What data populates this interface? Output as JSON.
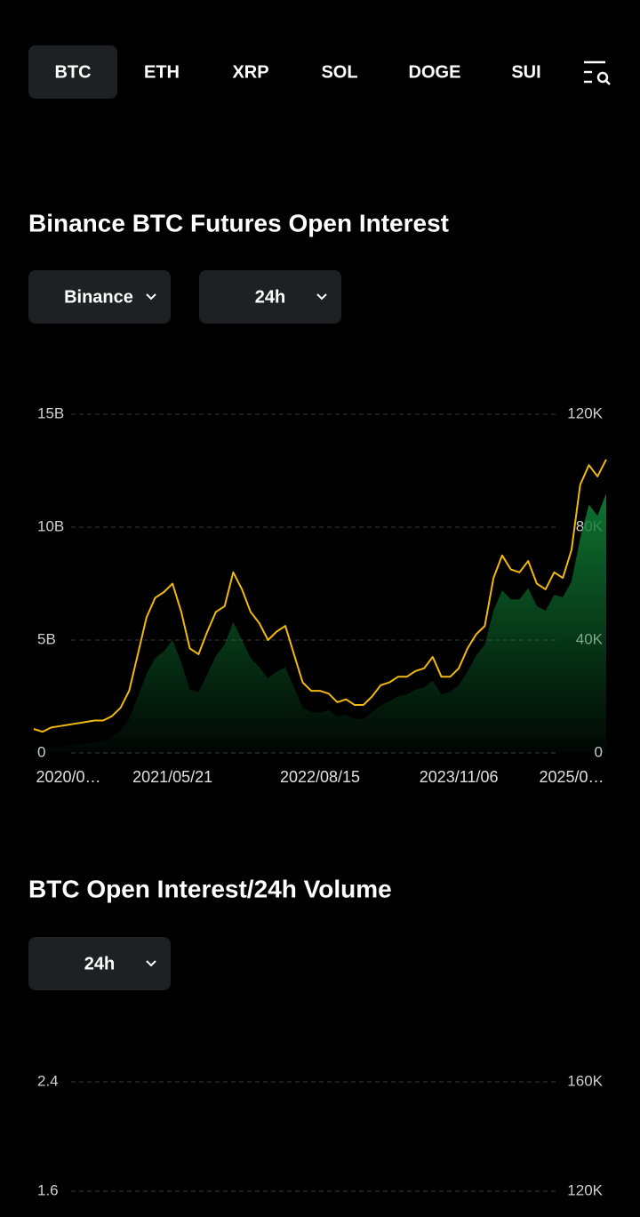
{
  "tabs": [
    "BTC",
    "ETH",
    "XRP",
    "SOL",
    "DOGE",
    "SUI"
  ],
  "active_tab": 0,
  "chart_data": [
    {
      "type": "line",
      "title": "Binance BTC Futures Open Interest",
      "filters": [
        "Binance",
        "24h"
      ],
      "categories": [
        null,
        null,
        null,
        null,
        "2020/0…",
        null,
        null,
        null,
        null,
        null,
        null,
        null,
        null,
        null,
        null,
        null,
        "2021/05/21",
        null,
        null,
        null,
        null,
        null,
        null,
        null,
        null,
        null,
        null,
        null,
        null,
        null,
        null,
        null,
        null,
        "2022/08/15",
        null,
        null,
        null,
        null,
        null,
        null,
        null,
        null,
        null,
        null,
        null,
        null,
        null,
        null,
        null,
        "2023/11/06",
        null,
        null,
        null,
        null,
        null,
        null,
        null,
        null,
        null,
        null,
        null,
        null,
        "2025/0…",
        null,
        null,
        null,
        null
      ],
      "series": [
        {
          "style": "area",
          "color": "#0f7a33",
          "values": [
            200000000.0,
            200000000.0,
            300000000.0,
            300000000.0,
            300000000.0,
            400000000.0,
            400000000.0,
            500000000.0,
            500000000.0,
            700000000.0,
            1000000000.0,
            1500000000.0,
            2500000000.0,
            3500000000.0,
            4200000000.0,
            4500000000.0,
            5000000000.0,
            4000000000.0,
            2800000000.0,
            2700000000.0,
            3500000000.0,
            4300000000.0,
            4800000000.0,
            5800000000.0,
            5000000000.0,
            4200000000.0,
            3800000000.0,
            3300000000.0,
            3600000000.0,
            3800000000.0,
            2900000000.0,
            2000000000.0,
            1800000000.0,
            1800000000.0,
            1900000000.0,
            1600000000.0,
            1700000000.0,
            1500000000.0,
            1500000000.0,
            1800000000.0,
            2100000000.0,
            2300000000.0,
            2500000000.0,
            2600000000.0,
            2800000000.0,
            2900000000.0,
            3200000000.0,
            2600000000.0,
            2700000000.0,
            3000000000.0,
            3600000000.0,
            4300000000.0,
            4800000000.0,
            6300000000.0,
            7200000000.0,
            6800000000.0,
            6800000000.0,
            7300000000.0,
            6500000000.0,
            6300000000.0,
            7000000000.0,
            6900000000.0,
            7600000000.0,
            9500000000.0,
            11000000000.0,
            10500000000.0,
            11500000000.0
          ]
        },
        {
          "style": "line",
          "axis": "y2",
          "color": "#f0b90b",
          "values": [
            8500,
            7500,
            9000,
            9500,
            10000,
            10500,
            11000,
            11500,
            11500,
            13000,
            16000,
            22000,
            35000,
            48000,
            55000,
            57000,
            60000,
            50000,
            37000,
            35000,
            43000,
            50000,
            52000,
            64000,
            58000,
            50000,
            46000,
            40000,
            43000,
            45000,
            35000,
            25000,
            22000,
            22000,
            21000,
            18000,
            19000,
            17000,
            17000,
            20000,
            24000,
            25000,
            27000,
            27000,
            29000,
            30000,
            34000,
            27000,
            27000,
            30000,
            37000,
            42000,
            45000,
            62000,
            70000,
            65000,
            64000,
            68000,
            60000,
            58000,
            64000,
            62000,
            72000,
            95000,
            102000,
            98000,
            104000
          ]
        }
      ],
      "ylim": [
        0,
        15000000000.0
      ],
      "yticks": [
        0,
        {
          "value": 5000000000.0,
          "label": "5B"
        },
        {
          "value": 10000000000.0,
          "label": "10B"
        },
        {
          "value": 15000000000.0,
          "label": "15B"
        }
      ],
      "y2lim": [
        0,
        120000
      ],
      "y2ticks": [
        0,
        {
          "value": 40000,
          "label": "40K"
        },
        {
          "value": 80000,
          "label": "80K"
        },
        {
          "value": 120000,
          "label": "120K"
        }
      ],
      "grid": true
    },
    {
      "type": "line",
      "title": "BTC Open Interest/24h Volume",
      "filters": [
        "24h"
      ],
      "categories": [],
      "series": [],
      "ylim": [
        0,
        2.4
      ],
      "yticks": [
        1.6,
        2.4
      ],
      "y2lim": [
        40000,
        160000
      ],
      "y2ticks": [
        {
          "value": 120000,
          "label": "120K"
        },
        {
          "value": 160000,
          "label": "160K"
        }
      ],
      "grid": true
    }
  ]
}
